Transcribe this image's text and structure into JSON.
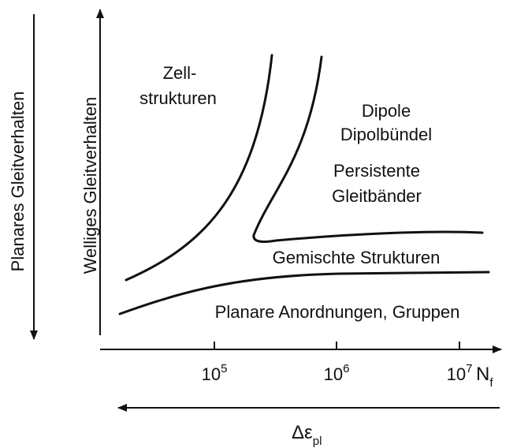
{
  "left_arrows": {
    "outer": "Planares Gleitverhalten",
    "inner": "Welliges Gleitverhalten"
  },
  "regions": [
    [
      "Zell-",
      "strukturen"
    ],
    [
      "Dipole",
      "Dipolbündel"
    ],
    [
      "Persistente",
      "Gleitbänder"
    ],
    [
      "Gemischte Strukturen"
    ],
    [
      "Planare Anordnungen, Gruppen"
    ]
  ],
  "x_axis": {
    "ticks": [
      {
        "base": "10",
        "exp": "5"
      },
      {
        "base": "10",
        "exp": "6"
      },
      {
        "base": "10",
        "exp": "7"
      }
    ],
    "label": {
      "main": "N",
      "sub": "f"
    }
  },
  "bottom_arrow": {
    "label": {
      "main": "Δε",
      "sub": "pl"
    }
  }
}
